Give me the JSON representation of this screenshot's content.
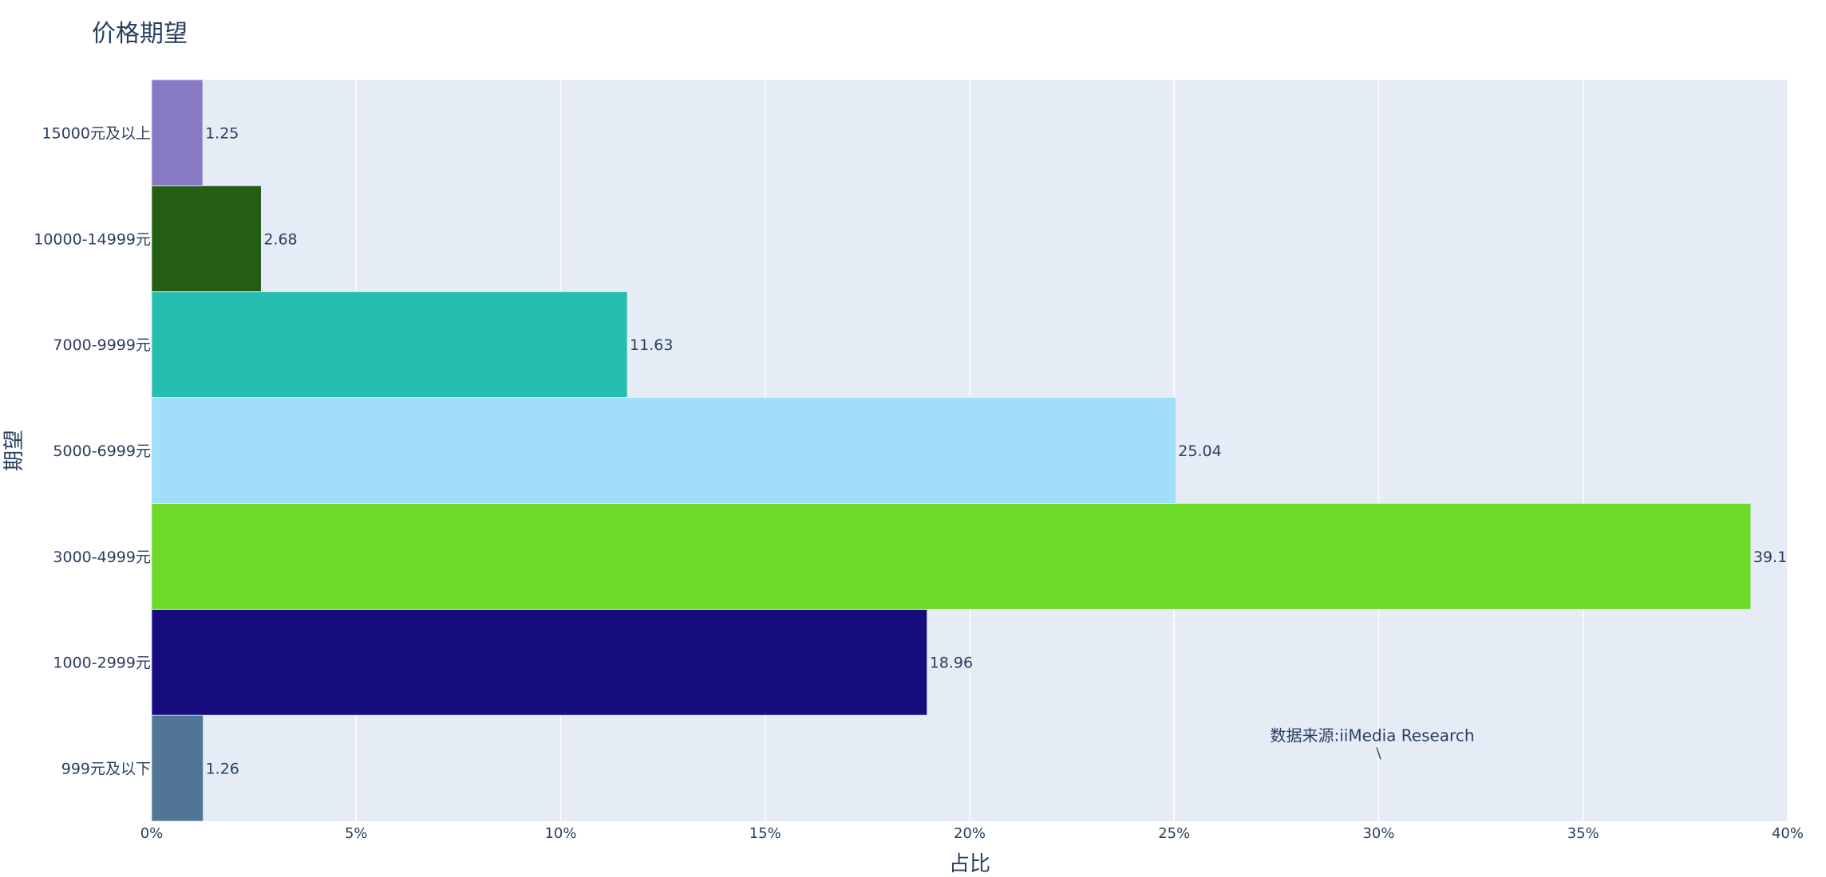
{
  "chart_data": {
    "type": "bar",
    "orientation": "horizontal",
    "title": "价格期望",
    "xlabel": "占比",
    "ylabel": "期望",
    "xlim": [
      0,
      40
    ],
    "x_tick_values": [
      0,
      5,
      10,
      15,
      20,
      25,
      30,
      35,
      40
    ],
    "x_tick_labels": [
      "0%",
      "5%",
      "10%",
      "15%",
      "20%",
      "25%",
      "30%",
      "35%",
      "40%"
    ],
    "grid": true,
    "categories": [
      "999元及以下",
      "1000-2999元",
      "3000-4999元",
      "5000-6999元",
      "7000-9999元",
      "10000-14999元",
      "15000元及以上"
    ],
    "values": [
      1.26,
      18.96,
      39.1,
      25.04,
      11.63,
      2.68,
      1.25
    ],
    "value_labels": [
      "1.26",
      "18.96",
      "39.1",
      "25.04",
      "11.63",
      "2.68",
      "1.25"
    ],
    "colors": [
      "#517594",
      "#180D7E",
      "#6ED926",
      "#A0DEF9",
      "#26BFAF",
      "#235E14",
      "#8779C4"
    ],
    "annotation": {
      "text": "数据来源:iiMedia Research",
      "subtext": "\\",
      "x": 30,
      "category": "999元及以下"
    }
  }
}
